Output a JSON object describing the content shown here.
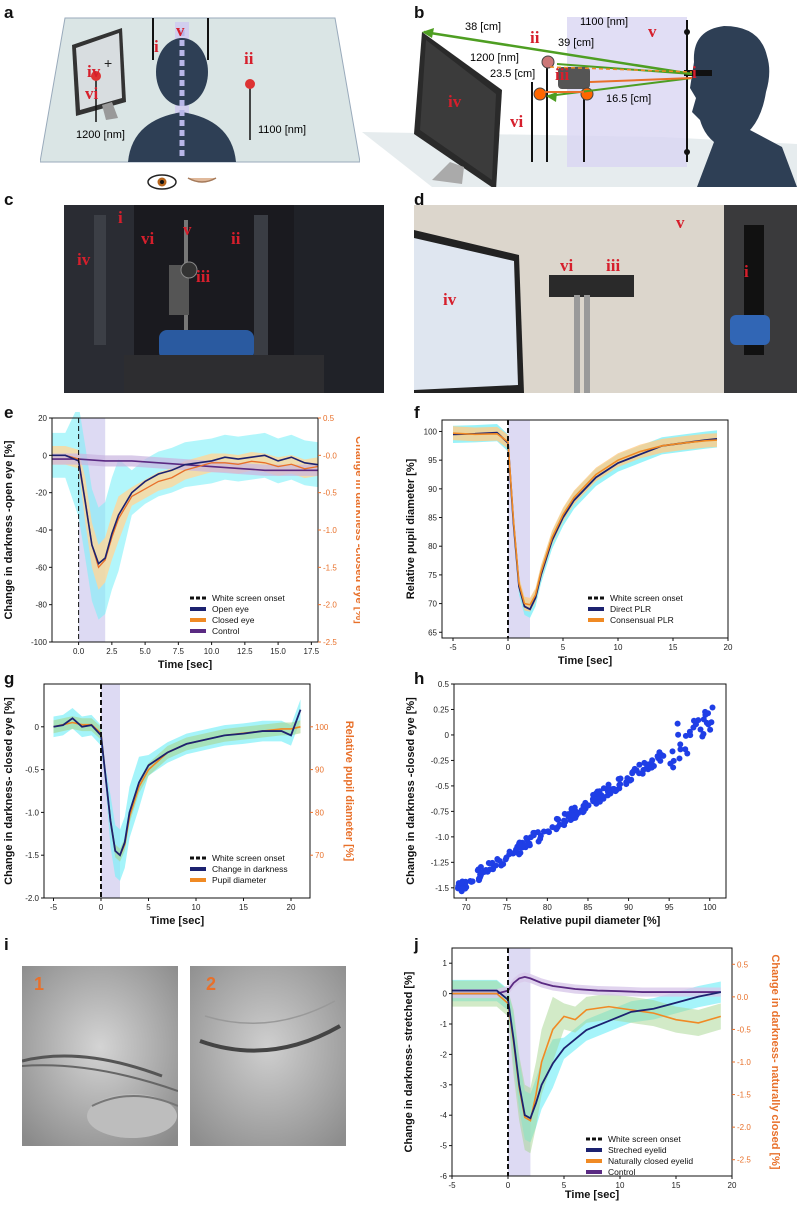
{
  "panels": {
    "a": {
      "letter": "a",
      "labels": {
        "i": "i",
        "ii": "ii",
        "iv": "iv",
        "v": "v",
        "vi": "vi"
      },
      "dim1": "1200 [nm]",
      "dim2": "1100 [nm]"
    },
    "b": {
      "letter": "b",
      "labels": {
        "i": "i",
        "ii": "ii",
        "iii": "iii",
        "iv": "iv",
        "v": "v",
        "vi": "vi"
      },
      "dims": {
        "d1": "1100 [nm]",
        "d2": "38 [cm]",
        "d3": "1200 [nm]",
        "d4": "39 [cm]",
        "d5": "23.5 [cm]",
        "d6": "16.5 [cm]"
      }
    },
    "c": {
      "letter": "c",
      "labels": {
        "i": "i",
        "ii": "ii",
        "iii": "iii",
        "iv": "iv",
        "v": "v",
        "vi": "vi"
      }
    },
    "d": {
      "letter": "d",
      "labels": {
        "i": "i",
        "iii": "iii",
        "iv": "iv",
        "v": "v",
        "vi": "vi"
      }
    },
    "e": {
      "letter": "e"
    },
    "f": {
      "letter": "f"
    },
    "g": {
      "letter": "g"
    },
    "h": {
      "letter": "h"
    },
    "i": {
      "letter": "i",
      "photo1": "1",
      "photo2": "2"
    },
    "j": {
      "letter": "j"
    }
  },
  "colors": {
    "navy": "#1c2270",
    "orange": "#f08a24",
    "purple": "#5a2a82",
    "cyan": "#7ff0f8",
    "lavender": "#d9d6f2",
    "red": "#d61f2c",
    "blue": "#1f3ee6",
    "green": "#a6d68f"
  },
  "chart_data": [
    {
      "id": "e",
      "type": "line",
      "xlabel": "Time [sec]",
      "ylabel": "Change in darkness -open eye [%]",
      "y2label": "Change in darkness -closed eye [%]",
      "xlim": [
        -2,
        18
      ],
      "ylim": [
        -100,
        20
      ],
      "y2lim": [
        -2.5,
        0.5
      ],
      "xticks": [
        "0.0",
        "2.5",
        "5.0",
        "7.5",
        "10.0",
        "12.5",
        "15.0",
        "17.5"
      ],
      "yticks": [
        "20",
        "0",
        "-20",
        "-40",
        "-60",
        "-80",
        "-100"
      ],
      "y2ticks": [
        "0.5",
        "-0.0",
        "-0.5",
        "-1.0",
        "-1.5",
        "-2.0",
        "-2.5"
      ],
      "legend": [
        "White screen onset",
        "Open eye",
        "Closed eye",
        "Control"
      ],
      "series": [
        {
          "name": "Open eye",
          "x": [
            -2,
            -1,
            0,
            0.5,
            1,
            1.5,
            2,
            2.5,
            3,
            4,
            5,
            6,
            7,
            8,
            9,
            10,
            11,
            12,
            13,
            14,
            15,
            16,
            17,
            18
          ],
          "values": [
            0,
            0,
            -3,
            -25,
            -48,
            -58,
            -55,
            -42,
            -32,
            -20,
            -14,
            -10,
            -8,
            -5,
            -4,
            -3,
            -1,
            -2,
            -1,
            0,
            -3,
            -1,
            -4,
            -5
          ]
        },
        {
          "name": "Closed eye",
          "x": [
            -2,
            -1,
            0,
            0.5,
            1,
            1.5,
            2,
            2.5,
            3,
            4,
            5,
            6,
            7,
            8,
            9,
            10,
            11,
            12,
            13,
            14,
            15,
            16,
            17,
            18
          ],
          "values": [
            0,
            0,
            -0.05,
            -0.6,
            -1.2,
            -1.5,
            -1.4,
            -1.1,
            -0.85,
            -0.55,
            -0.45,
            -0.35,
            -0.3,
            -0.2,
            -0.15,
            -0.1,
            -0.1,
            -0.12,
            -0.08,
            -0.1,
            -0.15,
            -0.12,
            -0.18,
            -0.15
          ]
        },
        {
          "name": "Control",
          "x": [
            -2,
            0,
            2,
            4,
            6,
            8,
            10,
            12,
            14,
            16,
            18
          ],
          "values": [
            -2,
            -2,
            -3,
            -3,
            -4,
            -5,
            -6,
            -7,
            -8,
            -8,
            -8
          ]
        }
      ]
    },
    {
      "id": "f",
      "type": "line",
      "xlabel": "Time [sec]",
      "ylabel": "Relative pupil diameter [%]",
      "xlim": [
        -6,
        20
      ],
      "ylim": [
        64,
        102
      ],
      "xticks": [
        "-5",
        "0",
        "5",
        "10",
        "15",
        "20"
      ],
      "yticks": [
        "100",
        "95",
        "90",
        "85",
        "80",
        "75",
        "70",
        "65"
      ],
      "legend": [
        "White screen onset",
        "Direct PLR",
        "Consensual PLR"
      ],
      "series": [
        {
          "name": "Direct PLR",
          "x": [
            -5,
            -3,
            -1,
            0,
            0.5,
            1,
            1.5,
            2,
            2.5,
            3,
            4,
            5,
            6,
            8,
            10,
            12,
            14,
            16,
            18,
            19
          ],
          "values": [
            99.5,
            99.6,
            99.8,
            98,
            84,
            73,
            69.5,
            69,
            71,
            75,
            81,
            85,
            88,
            92,
            94.5,
            96,
            97.5,
            98,
            98.5,
            98.7
          ]
        },
        {
          "name": "Consensual PLR",
          "x": [
            -5,
            -3,
            -1,
            0,
            0.5,
            1,
            1.5,
            2,
            2.5,
            3,
            4,
            5,
            6,
            8,
            10,
            12,
            14,
            16,
            18,
            19
          ],
          "values": [
            99.7,
            99.5,
            99.6,
            98.2,
            84.5,
            73.5,
            70,
            69.8,
            71.5,
            75.5,
            81.5,
            85.5,
            88.5,
            92.5,
            95,
            96.5,
            97.5,
            98,
            98.4,
            98.5
          ]
        }
      ]
    },
    {
      "id": "g",
      "type": "line",
      "xlabel": "Time [sec]",
      "ylabel": "Change in darkness- closed eye [%]",
      "y2label": "Relative pupil diameter [%]",
      "xlim": [
        -6,
        22
      ],
      "ylim": [
        -2.0,
        0.5
      ],
      "y2lim": [
        60,
        110
      ],
      "xticks": [
        "-5",
        "0",
        "5",
        "10",
        "15",
        "20"
      ],
      "yticks": [
        "0",
        "-0.5",
        "-1.0",
        "-1.5",
        "-2.0"
      ],
      "y2ticks": [
        "100",
        "90",
        "80",
        "70"
      ],
      "legend": [
        "White screen onset",
        "Change in darkness",
        "Pupil diameter"
      ],
      "series": [
        {
          "name": "Change in darkness",
          "x": [
            -5,
            -4,
            -3,
            -2,
            -1,
            0,
            0.5,
            1,
            1.5,
            2,
            2.5,
            3,
            4,
            5,
            7,
            9,
            11,
            13,
            15,
            17,
            19,
            20,
            21
          ],
          "values": [
            0,
            0.02,
            0.1,
            0,
            0.02,
            -0.1,
            -0.6,
            -1.1,
            -1.45,
            -1.5,
            -1.35,
            -1.0,
            -0.65,
            -0.45,
            -0.3,
            -0.2,
            -0.15,
            -0.1,
            -0.08,
            -0.05,
            -0.05,
            -0.1,
            0.2
          ]
        },
        {
          "name": "Pupil diameter",
          "x": [
            -5,
            -4,
            -3,
            -2,
            -1,
            0,
            0.5,
            1,
            1.5,
            2,
            2.5,
            3,
            4,
            5,
            7,
            9,
            11,
            13,
            15,
            17,
            19,
            20,
            21
          ],
          "values": [
            100,
            100.5,
            101,
            100.5,
            100.5,
            98.5,
            88,
            78,
            71,
            70,
            72.5,
            79,
            86,
            90,
            94,
            96,
            97,
            98,
            98.5,
            99,
            99.5,
            99.5,
            100
          ]
        }
      ]
    },
    {
      "id": "h",
      "type": "scatter",
      "xlabel": "Relative pupil diameter [%]",
      "ylabel": "Change in darkness -closed eye [%]",
      "xlim": [
        68.5,
        102
      ],
      "ylim": [
        -1.6,
        0.5
      ],
      "xticks": [
        "70",
        "75",
        "80",
        "85",
        "90",
        "95",
        "100"
      ],
      "yticks": [
        "0.5",
        "0.25",
        "0",
        "-0.25",
        "-0.5",
        "-0.75",
        "-1.0",
        "-1.25",
        "-1.5"
      ],
      "points_generator": "linear trend from (69, -1.5) to (100, 0.1) with spread"
    },
    {
      "id": "j",
      "type": "line",
      "xlabel": "Time [sec]",
      "ylabel": "Change in darkness- stretched [%]",
      "y2label": "Change in darkness- naturally closed [%]",
      "xlim": [
        -5,
        20
      ],
      "ylim": [
        -6,
        1.5
      ],
      "y2lim": [
        -2.75,
        0.75
      ],
      "xticks": [
        "-5",
        "0",
        "5",
        "10",
        "15",
        "20"
      ],
      "yticks": [
        "1",
        "0",
        "-1",
        "-2",
        "-3",
        "-4",
        "-5",
        "-6"
      ],
      "y2ticks": [
        "0.5",
        "0.0",
        "-0.5",
        "-1.0",
        "-1.5",
        "-2.0",
        "-2.5"
      ],
      "legend": [
        "White screen onset",
        "Streched eyelid",
        "Naturally closed eyelid",
        "Control"
      ],
      "series": [
        {
          "name": "Streched eyelid",
          "x": [
            -5,
            -3,
            -1,
            0,
            0.5,
            1,
            1.5,
            2,
            2.5,
            3,
            4,
            5,
            6,
            7,
            9,
            11,
            13,
            15,
            17,
            19
          ],
          "values": [
            0.1,
            0.1,
            0.1,
            -0.2,
            -1.5,
            -3.0,
            -4.0,
            -4.1,
            -3.6,
            -3.0,
            -2.3,
            -1.8,
            -1.5,
            -1.2,
            -0.9,
            -0.6,
            -0.5,
            -0.3,
            -0.1,
            0.05
          ]
        },
        {
          "name": "Naturally closed eyelid",
          "x": [
            -5,
            -3,
            -1,
            0,
            0.5,
            1,
            1.5,
            2,
            2.5,
            3,
            4,
            5,
            6,
            7,
            9,
            11,
            13,
            15,
            17,
            19
          ],
          "values": [
            0.05,
            0.05,
            0.05,
            -0.1,
            -0.7,
            -1.4,
            -1.85,
            -1.9,
            -1.5,
            -1.0,
            -0.5,
            -0.3,
            -0.35,
            -0.2,
            -0.15,
            -0.2,
            -0.25,
            -0.35,
            -0.4,
            -0.3
          ]
        },
        {
          "name": "Control",
          "x": [
            -5,
            -3,
            -1,
            0,
            0.5,
            1,
            1.5,
            2,
            3,
            4,
            6,
            8,
            10,
            12,
            14,
            16,
            18,
            19
          ],
          "values": [
            0.0,
            0.0,
            0.0,
            0.1,
            0.35,
            0.5,
            0.55,
            0.5,
            0.35,
            0.25,
            0.15,
            0.1,
            0.08,
            0.05,
            0.05,
            0.05,
            0.05,
            0.05
          ]
        }
      ]
    }
  ]
}
